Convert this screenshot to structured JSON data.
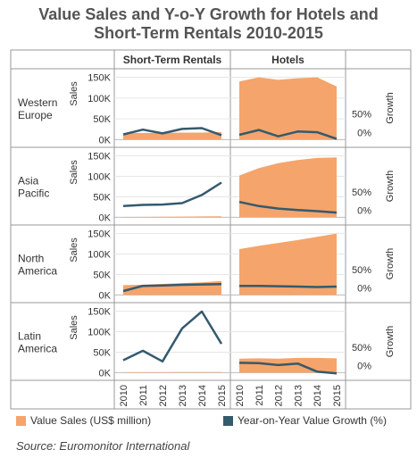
{
  "title_lines": [
    "Value Sales and Y-o-Y Growth for Hotels and",
    "Short-Term Rentals 2010-2015"
  ],
  "source": "Source: Euromonitor International",
  "colors": {
    "area": "#f5a46b",
    "line": "#345a6e",
    "grid": "#cccccc",
    "border": "#999999"
  },
  "chart_data": {
    "type": "area",
    "columns": [
      "Short-Term Rentals",
      "Hotels"
    ],
    "rows": [
      "Western Europe",
      "Asia Pacific",
      "North America",
      "Latin America"
    ],
    "row_labels": [
      [
        "Western",
        "Europe"
      ],
      [
        "Asia",
        "Pacific"
      ],
      [
        "North",
        "America"
      ],
      [
        "Latin",
        "America"
      ]
    ],
    "x": [
      "2010",
      "2011",
      "2012",
      "2013",
      "2014",
      "2015"
    ],
    "y_left_label": "Sales",
    "y_right_label": "Growth",
    "y_left_ticks": [
      "0K",
      "50K",
      "100K",
      "150K"
    ],
    "y_left_range": [
      -10000,
      160000
    ],
    "y_right_ticks": [
      "0%",
      "50%"
    ],
    "legend": [
      "Value Sales (US$ million)",
      "Year-on-Year Value Growth (%)"
    ],
    "panels": [
      {
        "row": "Western Europe",
        "column": "Short-Term Rentals",
        "sales": [
          15000,
          16000,
          16000,
          17000,
          17000,
          18000
        ],
        "growth": [
          -5,
          8,
          -2,
          10,
          12,
          -7
        ]
      },
      {
        "row": "Western Europe",
        "column": "Hotels",
        "sales": [
          140000,
          150000,
          144000,
          148000,
          150000,
          128000
        ],
        "growth": [
          -6,
          7,
          -10,
          3,
          1,
          -17
        ]
      },
      {
        "row": "Asia Pacific",
        "column": "Short-Term Rentals",
        "sales": [
          1000,
          1200,
          1500,
          1800,
          2200,
          2600
        ],
        "growth": [
          12,
          15,
          16,
          20,
          42,
          76
        ]
      },
      {
        "row": "Asia Pacific",
        "column": "Hotels",
        "sales": [
          102000,
          120000,
          132000,
          140000,
          145000,
          146000
        ],
        "growth": [
          23,
          12,
          5,
          1,
          -2,
          -6
        ]
      },
      {
        "row": "North America",
        "column": "Short-Term Rentals",
        "sales": [
          24000,
          25000,
          27000,
          29000,
          31000,
          34000
        ],
        "growth": [
          -8,
          6,
          7,
          9,
          10,
          11
        ]
      },
      {
        "row": "North America",
        "column": "Hotels",
        "sales": [
          112000,
          120000,
          127000,
          134000,
          142000,
          150000
        ],
        "growth": [
          6,
          6,
          5,
          4,
          3,
          4
        ]
      },
      {
        "row": "Latin America",
        "column": "Short-Term Rentals",
        "sales": [
          1000,
          1100,
          1200,
          1300,
          1400,
          1500
        ],
        "growth": [
          15,
          41,
          12,
          102,
          148,
          60
        ]
      },
      {
        "row": "Latin America",
        "column": "Hotels",
        "sales": [
          34000,
          35000,
          34000,
          36000,
          36000,
          35000
        ],
        "growth": [
          8,
          7,
          2,
          6,
          -16,
          -21
        ]
      }
    ]
  }
}
